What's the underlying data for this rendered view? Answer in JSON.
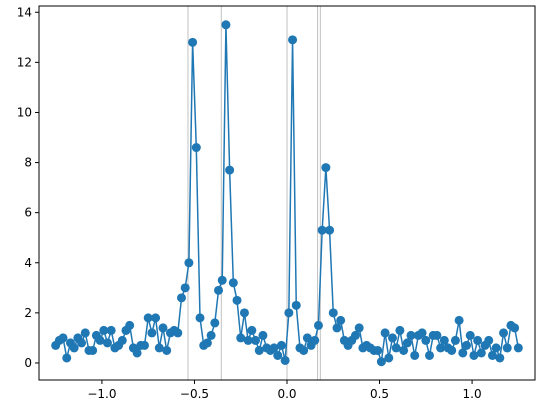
{
  "chart_data": {
    "type": "line",
    "title": "",
    "xlabel": "",
    "ylabel": "",
    "xlim": [
      -1.34,
      1.34
    ],
    "ylim": [
      -0.68,
      14.25
    ],
    "xticks": [
      -1.0,
      -0.5,
      0.0,
      0.5,
      1.0
    ],
    "xtick_labels": [
      "−1.0",
      "−0.5",
      "0.0",
      "0.5",
      "1.0"
    ],
    "yticks": [
      0,
      2,
      4,
      6,
      8,
      10,
      12,
      14
    ],
    "ytick_labels": [
      "0",
      "2",
      "4",
      "6",
      "8",
      "10",
      "12",
      "14"
    ],
    "grid": false,
    "legend": "none",
    "vertical_lines": [
      -0.535,
      -0.355,
      0.0,
      0.165,
      0.18
    ],
    "vertical_line_color": "#bbbbbb",
    "series": [
      {
        "color": "#1f77b4",
        "marker": "circle",
        "x": [
          -1.25,
          -1.23,
          -1.21,
          -1.19,
          -1.17,
          -1.15,
          -1.13,
          -1.11,
          -1.09,
          -1.07,
          -1.05,
          -1.03,
          -1.01,
          -0.99,
          -0.97,
          -0.95,
          -0.93,
          -0.91,
          -0.89,
          -0.87,
          -0.85,
          -0.83,
          -0.81,
          -0.79,
          -0.77,
          -0.75,
          -0.73,
          -0.71,
          -0.69,
          -0.67,
          -0.65,
          -0.63,
          -0.61,
          -0.59,
          -0.57,
          -0.55,
          -0.53,
          -0.51,
          -0.49,
          -0.47,
          -0.45,
          -0.43,
          -0.41,
          -0.39,
          -0.37,
          -0.35,
          -0.33,
          -0.31,
          -0.29,
          -0.27,
          -0.25,
          -0.23,
          -0.21,
          -0.19,
          -0.17,
          -0.15,
          -0.13,
          -0.11,
          -0.09,
          -0.07,
          -0.05,
          -0.03,
          -0.01,
          0.01,
          0.03,
          0.05,
          0.07,
          0.09,
          0.11,
          0.13,
          0.15,
          0.17,
          0.19,
          0.21,
          0.23,
          0.25,
          0.27,
          0.29,
          0.31,
          0.33,
          0.35,
          0.37,
          0.39,
          0.41,
          0.43,
          0.45,
          0.47,
          0.49,
          0.51,
          0.53,
          0.55,
          0.57,
          0.59,
          0.61,
          0.63,
          0.65,
          0.67,
          0.69,
          0.71,
          0.73,
          0.75,
          0.77,
          0.79,
          0.81,
          0.83,
          0.85,
          0.87,
          0.89,
          0.91,
          0.93,
          0.95,
          0.97,
          0.99,
          1.01,
          1.03,
          1.05,
          1.07,
          1.09,
          1.11,
          1.13,
          1.15,
          1.17,
          1.19,
          1.21,
          1.23,
          1.25
        ],
        "y": [
          0.7,
          0.9,
          1.0,
          0.2,
          0.8,
          0.6,
          1.0,
          0.8,
          1.2,
          0.5,
          0.5,
          1.1,
          0.9,
          1.3,
          0.8,
          1.3,
          0.6,
          0.7,
          0.9,
          1.3,
          1.5,
          0.6,
          0.4,
          0.7,
          0.7,
          1.8,
          1.2,
          1.8,
          0.6,
          1.4,
          0.5,
          1.2,
          1.3,
          1.2,
          2.6,
          3.0,
          4.0,
          12.8,
          8.6,
          1.8,
          0.7,
          0.8,
          1.1,
          1.6,
          2.9,
          3.3,
          13.5,
          7.7,
          3.2,
          2.5,
          1.0,
          2.0,
          0.9,
          1.3,
          0.9,
          0.5,
          1.1,
          0.6,
          0.5,
          0.6,
          0.3,
          0.7,
          0.1,
          2.0,
          12.9,
          2.3,
          0.6,
          0.5,
          1.0,
          0.7,
          0.9,
          1.5,
          5.3,
          7.8,
          5.3,
          2.0,
          1.4,
          1.7,
          0.9,
          0.7,
          0.9,
          1.1,
          1.4,
          0.6,
          0.7,
          0.6,
          0.5,
          0.5,
          0.05,
          1.2,
          0.2,
          1.0,
          0.6,
          1.3,
          0.5,
          0.8,
          1.1,
          0.3,
          1.1,
          1.2,
          0.9,
          0.3,
          1.1,
          1.1,
          0.6,
          0.9,
          0.6,
          0.5,
          0.9,
          1.7,
          0.4,
          0.7,
          1.1,
          0.3,
          0.9,
          0.4,
          0.7,
          0.9,
          0.3,
          0.6,
          0.2,
          1.2,
          0.6,
          1.5,
          1.4,
          0.6
        ]
      }
    ]
  }
}
